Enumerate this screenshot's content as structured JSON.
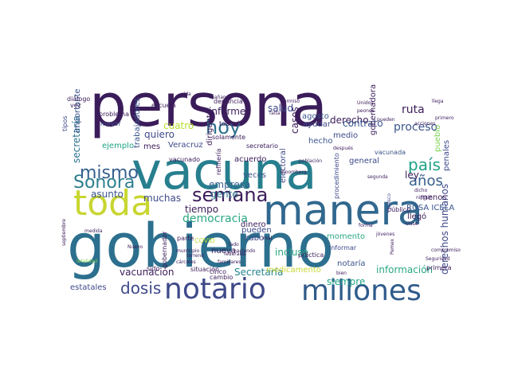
{
  "cloud": {
    "words": [
      {
        "text": "persona",
        "color": "#3b1c5a"
      },
      {
        "text": "vacuna",
        "color": "#277f8e"
      },
      {
        "text": "gobierno",
        "color": "#2c6f8e"
      },
      {
        "text": "manera",
        "color": "#31688e"
      },
      {
        "text": "toda",
        "color": "#c8d630"
      },
      {
        "text": "notario",
        "color": "#3e4989"
      },
      {
        "text": "millones",
        "color": "#2f5b8a"
      },
      {
        "text": "semana",
        "color": "#3b1c5a"
      },
      {
        "text": "hoy",
        "color": "#2d708e"
      },
      {
        "text": "Sonora",
        "color": "#2c7f8e"
      },
      {
        "text": "mismo",
        "color": "#355f8d"
      },
      {
        "text": "país",
        "color": "#20a386"
      },
      {
        "text": "años",
        "color": "#355f8d"
      },
      {
        "text": "dosis",
        "color": "#3e4989"
      },
      {
        "text": "democracia",
        "color": "#2aa883"
      },
      {
        "text": "tiempo",
        "color": "#3b1c5a"
      },
      {
        "text": "gente",
        "color": "#2c728e"
      },
      {
        "text": "asunto",
        "color": "#3a548c"
      },
      {
        "text": "muchas",
        "color": "#3e4989"
      },
      {
        "text": "cuatro",
        "color": "#b5de2b"
      },
      {
        "text": "proceso",
        "color": "#3a548c"
      },
      {
        "text": "vacunación",
        "color": "#3b1c5a"
      },
      {
        "text": "información",
        "color": "#2aa883"
      },
      {
        "text": "Secretaría",
        "color": "#25858e"
      },
      {
        "text": "derecho",
        "color": "#3b1c5a"
      },
      {
        "text": "siempre",
        "color": "#20a386"
      },
      {
        "text": "salud",
        "color": "#3e4989"
      },
      {
        "text": "ruta",
        "color": "#3b1c5a"
      },
      {
        "text": "pueblo",
        "color": "#7ad151"
      },
      {
        "text": "contrato",
        "color": "#3a548c"
      },
      {
        "text": "empresa",
        "color": "#355f8d"
      },
      {
        "text": "casos",
        "color": "#3b1c5a"
      },
      {
        "text": "informe",
        "color": "#3b1c5a"
      },
      {
        "text": "quiero",
        "color": "#3e4989"
      },
      {
        "text": "ley",
        "color": "#3b1c5a"
      },
      {
        "text": "secretaría",
        "color": "#2c728e"
      },
      {
        "text": "importante",
        "color": "#3a548c"
      },
      {
        "text": "derechos humanos",
        "color": "#3e4989"
      },
      {
        "text": "gobernadora",
        "color": "#3b1c5a"
      },
      {
        "text": "estatales",
        "color": "#3e4989"
      },
      {
        "text": "pueden",
        "color": "#3e4989"
      },
      {
        "text": "veces",
        "color": "#3a548c"
      },
      {
        "text": "cabo",
        "color": "#3e4989"
      },
      {
        "text": "incluso",
        "color": "#2aa883"
      },
      {
        "text": "nueva",
        "color": "#3b1c5a"
      },
      {
        "text": "notaría",
        "color": "#3a548c"
      },
      {
        "text": "dinero",
        "color": "#3b1c5a"
      },
      {
        "text": "electoral",
        "color": "#3e4989"
      },
      {
        "text": "acuerdo",
        "color": "#3b1c5a"
      },
      {
        "text": "Veracruz",
        "color": "#3e4989"
      },
      {
        "text": "mes",
        "color": "#3b1c5a"
      },
      {
        "text": "ejemplo",
        "color": "#20a386"
      },
      {
        "text": "trabajadores",
        "color": "#3a548c"
      },
      {
        "text": "general",
        "color": "#3e4989"
      },
      {
        "text": "medio",
        "color": "#3e4989"
      },
      {
        "text": "agosto",
        "color": "#3a548c"
      },
      {
        "text": "ayudar",
        "color": "#3e4989"
      },
      {
        "text": "hecho",
        "color": "#3a548c"
      },
      {
        "text": "vacunada",
        "color": "#3a548c"
      },
      {
        "text": "penales",
        "color": "#3e4989"
      },
      {
        "text": "menos",
        "color": "#3b1c5a"
      },
      {
        "text": "ROSA ICELA",
        "color": "#3a548c"
      },
      {
        "text": "llegó",
        "color": "#3b1c5a"
      },
      {
        "text": "público",
        "color": "#3b1c5a"
      },
      {
        "text": "momento",
        "color": "#2aa883"
      },
      {
        "text": "informar",
        "color": "#3e4989"
      },
      {
        "text": "práctica",
        "color": "#3b1c5a"
      },
      {
        "text": "procedimiento",
        "color": "#3e4989"
      },
      {
        "text": "primera",
        "color": "#3b1c5a"
      },
      {
        "text": "situación",
        "color": "#3b1c5a"
      },
      {
        "text": "medicamento",
        "color": "#c8d630"
      },
      {
        "text": "gobernador",
        "color": "#3b1c5a"
      },
      {
        "text": "cinco",
        "color": "#3b1c5a"
      },
      {
        "text": "sido",
        "color": "#3b1c5a"
      },
      {
        "text": "cambio",
        "color": "#3b1c5a"
      },
      {
        "text": "mayor",
        "color": "#3e4989"
      },
      {
        "text": "vez",
        "color": "#3b1c5a"
      },
      {
        "text": "diálogo",
        "color": "#3b1c5a"
      },
      {
        "text": "todavía",
        "color": "#3b1c5a"
      },
      {
        "text": "solamente",
        "color": "#3b1c5a"
      },
      {
        "text": "secretario",
        "color": "#3b1c5a"
      },
      {
        "text": "denuncia",
        "color": "#3b1c5a"
      },
      {
        "text": "escuela",
        "color": "#3b1c5a"
      },
      {
        "text": "problema",
        "color": "#3b1c5a"
      },
      {
        "text": "dirigente",
        "color": "#3b1c5a"
      },
      {
        "text": "refinería",
        "color": "#3b1c5a"
      },
      {
        "text": "vacunado",
        "color": "#3b1c5a"
      },
      {
        "text": "tipos",
        "color": "#3e4989"
      },
      {
        "text": "septiembre",
        "color": "#3b1c5a"
      },
      {
        "text": "letalidad",
        "color": "#7ad151"
      },
      {
        "text": "Nuevo",
        "color": "#3b1c5a"
      },
      {
        "text": "parte",
        "color": "#3b1c5a"
      },
      {
        "text": "COVID",
        "color": "#b5de2b"
      },
      {
        "text": "terreno",
        "color": "#3b1c5a"
      },
      {
        "text": "municipio",
        "color": "#3b1c5a"
      },
      {
        "text": "cárceles",
        "color": "#3b1c5a"
      },
      {
        "text": "familiares",
        "color": "#3b1c5a"
      },
      {
        "text": "federales",
        "color": "#3b1c5a"
      },
      {
        "text": "haciendo",
        "color": "#3b1c5a"
      },
      {
        "text": "Bloomberg",
        "color": "#3b1c5a"
      },
      {
        "text": "población",
        "color": "#3b1c5a"
      },
      {
        "text": "Unidos",
        "color": "#3b1c5a"
      },
      {
        "text": "peones",
        "color": "#3b1c5a"
      },
      {
        "text": "después",
        "color": "#3b1c5a"
      },
      {
        "text": "llega",
        "color": "#3b1c5a"
      },
      {
        "text": "primero",
        "color": "#3b1c5a"
      },
      {
        "text": "Jalisco",
        "color": "#3e4989"
      },
      {
        "text": "Seguridad",
        "color": "#3b1c5a"
      },
      {
        "text": "Pemex",
        "color": "#3b1c5a"
      },
      {
        "text": "compromiso",
        "color": "#3b1c5a"
      },
      {
        "text": "jóvenes",
        "color": "#3b1c5a"
      },
      {
        "text": "clase",
        "color": "#3b1c5a"
      },
      {
        "text": "forma",
        "color": "#3b1c5a"
      },
      {
        "text": "bien",
        "color": "#3b1c5a"
      },
      {
        "text": "mañana",
        "color": "#3b1c5a"
      },
      {
        "text": "vida",
        "color": "#3b1c5a"
      },
      {
        "text": "permiso",
        "color": "#3b1c5a"
      },
      {
        "text": "falta",
        "color": "#3b1c5a"
      },
      {
        "text": "medida",
        "color": "#3b1c5a"
      },
      {
        "text": "lado",
        "color": "#3b1c5a"
      },
      {
        "text": "segunda",
        "color": "#3b1c5a"
      },
      {
        "text": "dicho",
        "color": "#3b1c5a"
      },
      {
        "text": "ningún",
        "color": "#3b1c5a"
      },
      {
        "text": "acciones",
        "color": "#3b1c5a"
      },
      {
        "text": "mal",
        "color": "#3b1c5a"
      },
      {
        "text": "pueden",
        "color": "#3b1c5a"
      },
      {
        "text": "juicio",
        "color": "#3e4989"
      }
    ]
  }
}
